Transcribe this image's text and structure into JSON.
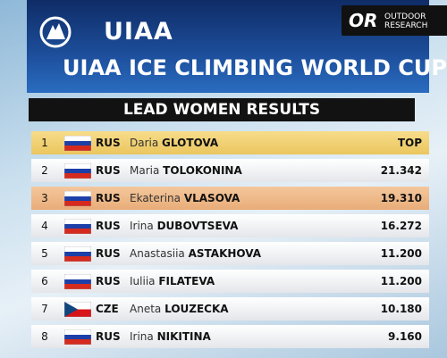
{
  "header": {
    "logo": "UIAA",
    "sponsor_mark": "OR",
    "sponsor": "OUTDOOR RESEARCH",
    "title": "UIAA ICE CLIMBING WORLD CUP",
    "subtitle": "LEAD WOMEN RESULTS"
  },
  "results": [
    {
      "rank": 1,
      "country": "RUS",
      "first_name": "Daria",
      "last_name": "GLOTOVA",
      "score": "TOP"
    },
    {
      "rank": 2,
      "country": "RUS",
      "first_name": "Maria",
      "last_name": "TOLOKONINA",
      "score": "21.342"
    },
    {
      "rank": 3,
      "country": "RUS",
      "first_name": "Ekaterina",
      "last_name": "VLASOVA",
      "score": "19.310"
    },
    {
      "rank": 4,
      "country": "RUS",
      "first_name": "Irina",
      "last_name": "DUBOVTSEVA",
      "score": "16.272"
    },
    {
      "rank": 5,
      "country": "RUS",
      "first_name": "Anastasiia",
      "last_name": "ASTAKHOVA",
      "score": "11.200"
    },
    {
      "rank": 6,
      "country": "RUS",
      "first_name": "Iuliia",
      "last_name": "FILATEVA",
      "score": "11.200"
    },
    {
      "rank": 7,
      "country": "CZE",
      "first_name": "Aneta",
      "last_name": "LOUZECKA",
      "score": "10.180"
    },
    {
      "rank": 8,
      "country": "RUS",
      "first_name": "Irina",
      "last_name": "NIKITINA",
      "score": "9.160"
    }
  ]
}
